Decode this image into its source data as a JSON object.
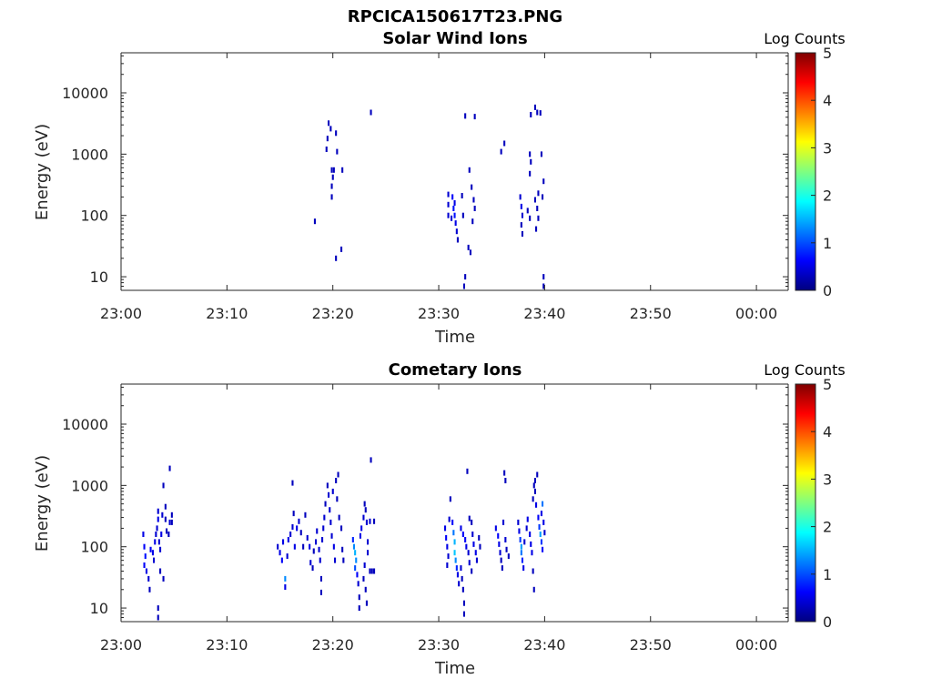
{
  "figure": {
    "title": "RPCICA150617T23.PNG"
  },
  "chart_data": [
    {
      "type": "heatmap",
      "title": "Solar Wind Ions",
      "xlabel": "Time",
      "ylabel": "Energy (eV)",
      "x_ticks": [
        "23:00",
        "23:10",
        "23:20",
        "23:30",
        "23:40",
        "23:50",
        "00:00"
      ],
      "x_range_minutes": [
        0,
        63
      ],
      "y_ticks": [
        "10",
        "100",
        "1000",
        "10000"
      ],
      "y_scale": "log",
      "y_range": [
        6,
        45000
      ],
      "colorbar": {
        "label": "Log Counts",
        "ticks": [
          "0",
          "1",
          "2",
          "3",
          "4",
          "5"
        ],
        "range": [
          0,
          5
        ],
        "colormap": "jet"
      },
      "cells": [
        [
          18.3,
          80,
          0.3
        ],
        [
          19.6,
          3200,
          0.3
        ],
        [
          19.8,
          2600,
          0.3
        ],
        [
          19.5,
          1800,
          0.3
        ],
        [
          19.4,
          1200,
          0.3
        ],
        [
          20.3,
          2200,
          0.3
        ],
        [
          20.4,
          1100,
          0.3
        ],
        [
          19.9,
          550,
          0.3
        ],
        [
          20.1,
          550,
          0.3
        ],
        [
          20.0,
          420,
          0.3
        ],
        [
          19.9,
          300,
          0.3
        ],
        [
          19.9,
          200,
          0.3
        ],
        [
          20.3,
          20,
          0.3
        ],
        [
          20.8,
          28,
          0.3
        ],
        [
          20.9,
          550,
          0.3
        ],
        [
          23.6,
          4800,
          0.3
        ],
        [
          30.9,
          220,
          0.4
        ],
        [
          30.9,
          150,
          0.4
        ],
        [
          30.9,
          100,
          0.4
        ],
        [
          31.3,
          200,
          0.6
        ],
        [
          31.4,
          130,
          0.7
        ],
        [
          31.5,
          100,
          0.7
        ],
        [
          31.6,
          75,
          0.5
        ],
        [
          31.7,
          55,
          0.4
        ],
        [
          31.8,
          40,
          0.3
        ],
        [
          31.2,
          90,
          0.4
        ],
        [
          31.5,
          160,
          0.5
        ],
        [
          32.2,
          210,
          0.3
        ],
        [
          32.3,
          100,
          0.3
        ],
        [
          32.5,
          4200,
          0.3
        ],
        [
          32.5,
          10,
          0.3
        ],
        [
          32.4,
          7,
          0.3
        ],
        [
          32.8,
          30,
          0.3
        ],
        [
          33.0,
          25,
          0.3
        ],
        [
          33.2,
          80,
          0.3
        ],
        [
          33.3,
          180,
          0.3
        ],
        [
          33.4,
          130,
          0.3
        ],
        [
          33.1,
          290,
          0.3
        ],
        [
          32.9,
          550,
          0.3
        ],
        [
          33.4,
          4100,
          0.3
        ],
        [
          35.9,
          1100,
          0.3
        ],
        [
          36.2,
          1500,
          0.3
        ],
        [
          37.7,
          200,
          0.4
        ],
        [
          37.8,
          140,
          0.5
        ],
        [
          37.9,
          100,
          0.4
        ],
        [
          37.8,
          70,
          0.3
        ],
        [
          37.9,
          50,
          0.3
        ],
        [
          38.4,
          120,
          0.3
        ],
        [
          38.6,
          90,
          0.3
        ],
        [
          38.6,
          1000,
          0.3
        ],
        [
          38.7,
          750,
          0.3
        ],
        [
          38.6,
          480,
          0.3
        ],
        [
          38.7,
          4400,
          0.3
        ],
        [
          39.1,
          5800,
          0.3
        ],
        [
          39.3,
          4800,
          0.3
        ],
        [
          39.6,
          4700,
          0.3
        ],
        [
          39.1,
          180,
          0.3
        ],
        [
          39.3,
          130,
          0.3
        ],
        [
          39.4,
          90,
          0.3
        ],
        [
          39.2,
          60,
          0.3
        ],
        [
          39.4,
          230,
          0.3
        ],
        [
          39.7,
          1000,
          0.3
        ],
        [
          39.9,
          360,
          0.3
        ],
        [
          39.8,
          200,
          0.3
        ],
        [
          39.9,
          10,
          0.3
        ],
        [
          39.9,
          7,
          0.3
        ]
      ]
    },
    {
      "type": "heatmap",
      "title": "Cometary Ions",
      "xlabel": "Time",
      "ylabel": "Energy (eV)",
      "x_ticks": [
        "23:00",
        "23:10",
        "23:20",
        "23:30",
        "23:40",
        "23:50",
        "00:00"
      ],
      "x_range_minutes": [
        0,
        63
      ],
      "y_ticks": [
        "10",
        "100",
        "1000",
        "10000"
      ],
      "y_scale": "log",
      "y_range": [
        6,
        45000
      ],
      "colorbar": {
        "label": "Log Counts",
        "ticks": [
          "0",
          "1",
          "2",
          "3",
          "4",
          "5"
        ],
        "range": [
          0,
          5
        ],
        "colormap": "jet"
      },
      "cells": [
        [
          2.1,
          160,
          0.5
        ],
        [
          2.2,
          100,
          0.6
        ],
        [
          2.3,
          70,
          0.7
        ],
        [
          2.2,
          50,
          0.6
        ],
        [
          2.4,
          40,
          0.5
        ],
        [
          2.6,
          30,
          0.4
        ],
        [
          2.7,
          20,
          0.3
        ],
        [
          2.8,
          90,
          0.6
        ],
        [
          3.0,
          80,
          0.5
        ],
        [
          3.1,
          60,
          0.4
        ],
        [
          3.2,
          120,
          0.5
        ],
        [
          3.3,
          160,
          0.4
        ],
        [
          3.4,
          200,
          0.4
        ],
        [
          3.5,
          280,
          0.5
        ],
        [
          3.5,
          380,
          0.4
        ],
        [
          3.6,
          120,
          0.4
        ],
        [
          3.7,
          90,
          0.4
        ],
        [
          3.8,
          160,
          0.5
        ],
        [
          3.9,
          330,
          0.4
        ],
        [
          4.0,
          1000,
          0.3
        ],
        [
          4.2,
          450,
          0.3
        ],
        [
          4.2,
          280,
          0.3
        ],
        [
          4.3,
          180,
          0.3
        ],
        [
          4.5,
          160,
          0.3
        ],
        [
          4.6,
          250,
          0.4
        ],
        [
          4.6,
          1900,
          0.3
        ],
        [
          3.5,
          10,
          0.3
        ],
        [
          3.5,
          7,
          0.3
        ],
        [
          3.7,
          40,
          0.3
        ],
        [
          4.0,
          30,
          0.3
        ],
        [
          4.8,
          330,
          0.3
        ],
        [
          4.8,
          250,
          0.3
        ],
        [
          14.8,
          100,
          0.4
        ],
        [
          15.0,
          80,
          0.5
        ],
        [
          15.2,
          60,
          0.6
        ],
        [
          15.3,
          120,
          0.5
        ],
        [
          15.5,
          30,
          1.3
        ],
        [
          15.5,
          22,
          0.5
        ],
        [
          15.7,
          70,
          0.4
        ],
        [
          15.8,
          130,
          0.5
        ],
        [
          16.0,
          160,
          0.4
        ],
        [
          16.2,
          210,
          0.4
        ],
        [
          16.3,
          350,
          0.3
        ],
        [
          16.2,
          1100,
          0.3
        ],
        [
          16.4,
          100,
          0.5
        ],
        [
          16.6,
          200,
          0.5
        ],
        [
          16.8,
          260,
          0.4
        ],
        [
          17.0,
          170,
          0.3
        ],
        [
          17.2,
          100,
          0.3
        ],
        [
          17.4,
          330,
          0.3
        ],
        [
          17.6,
          140,
          0.4
        ],
        [
          17.8,
          100,
          0.5
        ],
        [
          17.9,
          55,
          0.4
        ],
        [
          18.1,
          45,
          0.3
        ],
        [
          18.2,
          85,
          0.3
        ],
        [
          18.4,
          120,
          0.4
        ],
        [
          18.5,
          180,
          0.4
        ],
        [
          18.7,
          90,
          0.4
        ],
        [
          18.8,
          60,
          0.4
        ],
        [
          18.9,
          30,
          0.3
        ],
        [
          18.9,
          18,
          0.3
        ],
        [
          19.0,
          130,
          0.4
        ],
        [
          19.1,
          200,
          0.4
        ],
        [
          19.2,
          300,
          0.4
        ],
        [
          19.3,
          500,
          0.3
        ],
        [
          19.5,
          1000,
          0.3
        ],
        [
          19.6,
          700,
          0.4
        ],
        [
          19.7,
          400,
          0.4
        ],
        [
          19.8,
          250,
          0.4
        ],
        [
          19.9,
          150,
          0.4
        ],
        [
          20.1,
          100,
          0.5
        ],
        [
          20.2,
          60,
          0.4
        ],
        [
          20.0,
          800,
          0.4
        ],
        [
          20.3,
          1200,
          0.3
        ],
        [
          20.5,
          1500,
          0.3
        ],
        [
          20.4,
          600,
          0.3
        ],
        [
          20.6,
          300,
          0.3
        ],
        [
          20.8,
          200,
          0.3
        ],
        [
          20.9,
          90,
          0.3
        ],
        [
          21.0,
          60,
          0.3
        ],
        [
          21.9,
          130,
          0.8
        ],
        [
          22.0,
          100,
          1.3
        ],
        [
          22.1,
          80,
          1.5
        ],
        [
          22.2,
          60,
          1.3
        ],
        [
          22.1,
          45,
          1.0
        ],
        [
          22.3,
          35,
          0.6
        ],
        [
          22.4,
          25,
          0.4
        ],
        [
          22.5,
          15,
          0.3
        ],
        [
          22.5,
          10,
          0.3
        ],
        [
          22.6,
          150,
          0.5
        ],
        [
          22.7,
          200,
          0.5
        ],
        [
          22.9,
          300,
          0.4
        ],
        [
          23.0,
          500,
          0.3
        ],
        [
          23.1,
          400,
          0.3
        ],
        [
          23.2,
          250,
          0.4
        ],
        [
          23.3,
          120,
          0.4
        ],
        [
          23.3,
          80,
          0.4
        ],
        [
          23.0,
          50,
          0.4
        ],
        [
          22.9,
          30,
          0.3
        ],
        [
          23.1,
          20,
          0.3
        ],
        [
          23.2,
          12,
          0.3
        ],
        [
          23.5,
          40,
          0.3
        ],
        [
          23.7,
          40,
          0.3
        ],
        [
          23.9,
          40,
          0.3
        ],
        [
          23.5,
          260,
          0.4
        ],
        [
          23.6,
          2600,
          0.3
        ],
        [
          23.9,
          260,
          0.3
        ],
        [
          30.6,
          200,
          0.5
        ],
        [
          30.7,
          140,
          0.6
        ],
        [
          30.8,
          100,
          0.5
        ],
        [
          30.9,
          70,
          0.4
        ],
        [
          30.8,
          50,
          0.4
        ],
        [
          31.0,
          280,
          0.4
        ],
        [
          31.1,
          600,
          0.3
        ],
        [
          31.3,
          250,
          0.6
        ],
        [
          31.4,
          170,
          1.2
        ],
        [
          31.5,
          120,
          1.5
        ],
        [
          31.5,
          80,
          1.6
        ],
        [
          31.6,
          60,
          1.3
        ],
        [
          31.7,
          45,
          0.8
        ],
        [
          31.8,
          35,
          0.5
        ],
        [
          31.9,
          25,
          0.4
        ],
        [
          32.1,
          45,
          0.4
        ],
        [
          32.2,
          30,
          0.3
        ],
        [
          32.3,
          20,
          0.3
        ],
        [
          32.4,
          12,
          0.3
        ],
        [
          32.4,
          8,
          0.3
        ],
        [
          32.1,
          200,
          0.5
        ],
        [
          32.3,
          160,
          0.6
        ],
        [
          32.5,
          130,
          0.6
        ],
        [
          32.6,
          100,
          0.5
        ],
        [
          32.8,
          80,
          0.4
        ],
        [
          32.9,
          55,
          0.4
        ],
        [
          33.1,
          40,
          0.3
        ],
        [
          33.2,
          160,
          0.4
        ],
        [
          33.3,
          110,
          0.5
        ],
        [
          33.5,
          80,
          0.5
        ],
        [
          33.6,
          60,
          0.4
        ],
        [
          33.8,
          140,
          0.3
        ],
        [
          33.9,
          100,
          0.3
        ],
        [
          32.9,
          290,
          0.3
        ],
        [
          33.1,
          250,
          0.3
        ],
        [
          32.7,
          1700,
          0.3
        ],
        [
          35.4,
          200,
          0.5
        ],
        [
          35.6,
          150,
          0.6
        ],
        [
          35.7,
          110,
          0.5
        ],
        [
          35.8,
          80,
          0.4
        ],
        [
          35.9,
          60,
          0.3
        ],
        [
          36.0,
          45,
          0.3
        ],
        [
          36.1,
          250,
          0.4
        ],
        [
          36.2,
          1600,
          0.3
        ],
        [
          36.3,
          1200,
          0.3
        ],
        [
          36.3,
          130,
          0.4
        ],
        [
          36.4,
          90,
          0.3
        ],
        [
          36.6,
          70,
          0.3
        ],
        [
          37.5,
          250,
          0.4
        ],
        [
          37.6,
          180,
          0.5
        ],
        [
          37.7,
          130,
          0.9
        ],
        [
          37.8,
          100,
          1.4
        ],
        [
          37.8,
          80,
          1.2
        ],
        [
          37.9,
          60,
          0.8
        ],
        [
          38.0,
          45,
          0.5
        ],
        [
          38.1,
          120,
          0.4
        ],
        [
          38.3,
          200,
          0.4
        ],
        [
          38.4,
          280,
          0.5
        ],
        [
          38.6,
          160,
          0.5
        ],
        [
          38.7,
          110,
          0.5
        ],
        [
          38.8,
          80,
          0.5
        ],
        [
          38.9,
          40,
          0.3
        ],
        [
          39.0,
          20,
          0.3
        ],
        [
          38.9,
          600,
          0.3
        ],
        [
          39.0,
          1000,
          0.3
        ],
        [
          39.1,
          800,
          0.3
        ],
        [
          39.2,
          480,
          0.5
        ],
        [
          39.4,
          300,
          0.6
        ],
        [
          39.5,
          210,
          0.9
        ],
        [
          39.6,
          160,
          1.4
        ],
        [
          39.7,
          120,
          0.9
        ],
        [
          39.8,
          90,
          0.6
        ],
        [
          39.7,
          350,
          0.5
        ],
        [
          39.8,
          500,
          1.2
        ],
        [
          39.9,
          250,
          0.5
        ],
        [
          40.0,
          170,
          0.4
        ],
        [
          39.1,
          1200,
          0.3
        ],
        [
          39.3,
          1500,
          0.3
        ]
      ]
    }
  ]
}
